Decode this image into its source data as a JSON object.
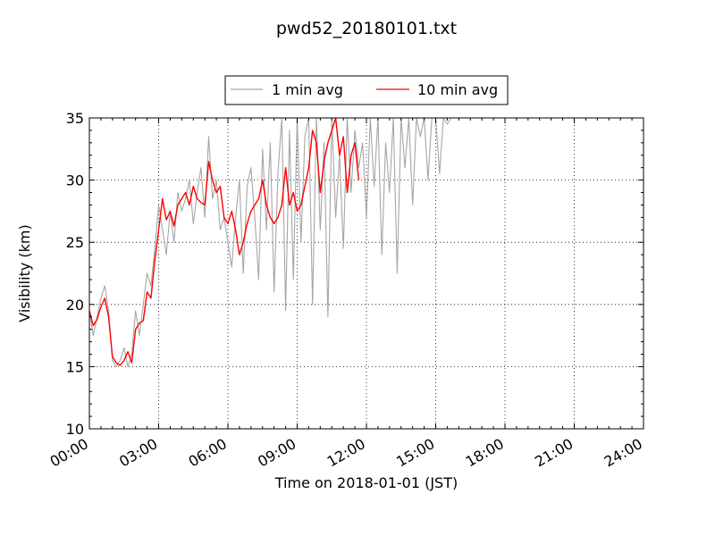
{
  "chart_data": {
    "type": "line",
    "title": "pwd52_20180101.txt",
    "xlabel": "Time on 2018-01-01 (JST)",
    "ylabel": "Visibility (km)",
    "xlim": [
      "00:00",
      "24:00"
    ],
    "ylim": [
      10,
      35
    ],
    "x_ticks": [
      "00:00",
      "03:00",
      "06:00",
      "09:00",
      "12:00",
      "15:00",
      "18:00",
      "21:00",
      "24:00"
    ],
    "y_ticks": [
      10,
      15,
      20,
      25,
      30,
      35
    ],
    "grid": true,
    "legend_position": "top-center",
    "series": [
      {
        "name": "1 min avg",
        "color": "#a6a6a6",
        "x": [
          "00:00",
          "00:10",
          "00:20",
          "00:30",
          "00:40",
          "00:50",
          "01:00",
          "01:10",
          "01:20",
          "01:30",
          "01:40",
          "01:50",
          "02:00",
          "02:10",
          "02:20",
          "02:30",
          "02:40",
          "02:50",
          "03:00",
          "03:10",
          "03:20",
          "03:30",
          "03:40",
          "03:50",
          "04:00",
          "04:10",
          "04:20",
          "04:30",
          "04:40",
          "04:50",
          "05:00",
          "05:10",
          "05:20",
          "05:30",
          "05:40",
          "05:50",
          "06:00",
          "06:10",
          "06:20",
          "06:30",
          "06:40",
          "06:50",
          "07:00",
          "07:10",
          "07:20",
          "07:30",
          "07:40",
          "07:50",
          "08:00",
          "08:10",
          "08:20",
          "08:30",
          "08:40",
          "08:50",
          "09:00",
          "09:10",
          "09:20",
          "09:30",
          "09:40",
          "09:50",
          "10:00",
          "10:10",
          "10:20",
          "10:30",
          "10:40",
          "10:50",
          "11:00",
          "11:10",
          "11:20",
          "11:30",
          "11:40",
          "11:50",
          "12:00",
          "12:10",
          "12:20",
          "12:30",
          "12:40",
          "12:50",
          "13:00",
          "13:10",
          "13:20",
          "13:30",
          "13:40",
          "13:50",
          "14:00",
          "14:10",
          "14:20",
          "14:30",
          "14:40",
          "14:50",
          "15:00",
          "15:10",
          "15:20",
          "15:30",
          "15:40",
          "15:50",
          "16:00",
          "16:10",
          "16:20",
          "16:30"
        ],
        "values": [
          19.5,
          17.5,
          19.0,
          20.5,
          21.5,
          19.5,
          15.5,
          15.0,
          15.5,
          16.5,
          15.0,
          16.0,
          19.5,
          17.5,
          20.0,
          22.5,
          21.5,
          24.5,
          28.0,
          26.0,
          24.0,
          27.5,
          25.0,
          29.0,
          27.5,
          28.5,
          30.0,
          26.5,
          29.0,
          31.0,
          27.0,
          33.5,
          28.5,
          30.0,
          26.0,
          27.0,
          25.0,
          23.0,
          27.0,
          30.0,
          22.5,
          29.5,
          31.0,
          27.0,
          22.0,
          32.5,
          26.0,
          33.0,
          21.0,
          30.5,
          35.0,
          19.5,
          34.0,
          22.0,
          35.0,
          25.0,
          33.5,
          35.0,
          20.0,
          35.0,
          26.0,
          33.0,
          19.0,
          35.0,
          27.0,
          32.0,
          24.5,
          35.0,
          29.0,
          34.0,
          31.0,
          33.0,
          27.0,
          35.0,
          29.5,
          35.0,
          24.0,
          33.0,
          29.0,
          35.0,
          22.5,
          35.0,
          31.0,
          35.0,
          28.0,
          35.0,
          33.5,
          35.0,
          30.0,
          35.0,
          35.0,
          30.5,
          35.0,
          34.5,
          35.0,
          35.0,
          35.0,
          35.0,
          35.0,
          35.0
        ]
      },
      {
        "name": "10 min avg",
        "color": "#ff0000",
        "x": [
          "00:00",
          "00:10",
          "00:20",
          "00:30",
          "00:40",
          "00:50",
          "01:00",
          "01:10",
          "01:20",
          "01:30",
          "01:40",
          "01:50",
          "02:00",
          "02:10",
          "02:20",
          "02:30",
          "02:40",
          "02:50",
          "03:00",
          "03:10",
          "03:20",
          "03:30",
          "03:40",
          "03:50",
          "04:00",
          "04:10",
          "04:20",
          "04:30",
          "04:40",
          "04:50",
          "05:00",
          "05:10",
          "05:20",
          "05:30",
          "05:40",
          "05:50",
          "06:00",
          "06:10",
          "06:20",
          "06:30",
          "06:40",
          "06:50",
          "07:00",
          "07:10",
          "07:20",
          "07:30",
          "07:40",
          "07:50",
          "08:00",
          "08:10",
          "08:20",
          "08:30",
          "08:40",
          "08:50",
          "09:00",
          "09:10",
          "09:20",
          "09:30",
          "09:40",
          "09:50",
          "10:00",
          "10:10",
          "10:20",
          "10:30",
          "10:40",
          "10:50",
          "11:00",
          "11:10",
          "11:20",
          "11:30",
          "11:40"
        ],
        "values": [
          19.5,
          18.3,
          18.8,
          19.8,
          20.5,
          19.0,
          15.8,
          15.3,
          15.1,
          15.5,
          16.2,
          15.3,
          18.0,
          18.5,
          18.7,
          21.0,
          20.5,
          23.5,
          26.0,
          28.5,
          26.8,
          27.5,
          26.3,
          28.0,
          28.5,
          29.0,
          28.0,
          29.5,
          28.5,
          28.2,
          28.0,
          31.5,
          30.0,
          29.0,
          29.5,
          27.0,
          26.5,
          27.5,
          26.0,
          24.0,
          25.0,
          26.5,
          27.5,
          28.0,
          28.5,
          30.0,
          28.0,
          27.0,
          26.5,
          27.0,
          28.0,
          31.0,
          28.0,
          29.0,
          27.5,
          28.0,
          29.5,
          31.0,
          34.0,
          33.0,
          29.0,
          31.5,
          33.0,
          34.0,
          35.0,
          32.0,
          33.5,
          29.0,
          32.0,
          33.0,
          30.0
        ]
      }
    ]
  },
  "legend": {
    "items": [
      "1 min avg",
      "10 min avg"
    ]
  }
}
